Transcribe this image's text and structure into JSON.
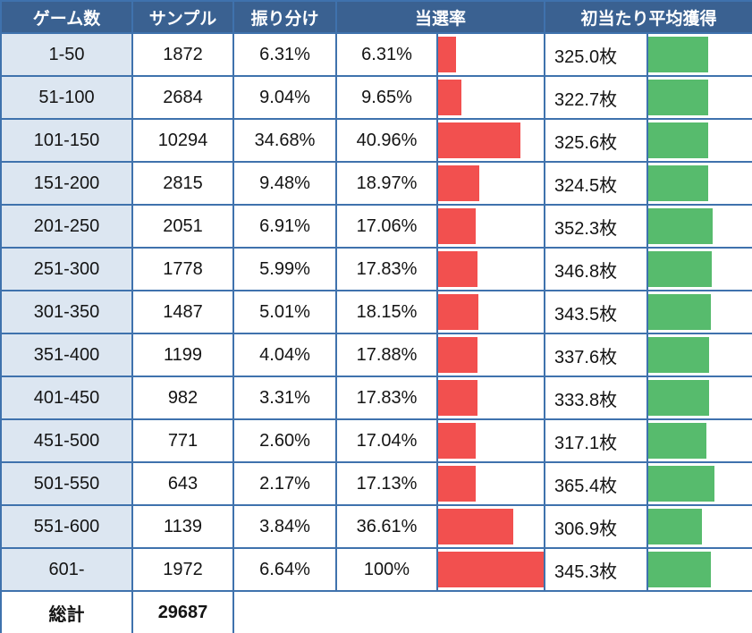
{
  "colors": {
    "header_bg": "#3a6191",
    "label_bg": "#dce6f1",
    "border": "#3f72ad",
    "win_bar": "#f2504f",
    "payout_bar": "#57bb6d"
  },
  "chart_data": {
    "type": "table",
    "headers": {
      "games": "ゲーム数",
      "sample": "サンプル",
      "distribution": "振り分け",
      "win_rate": "当選率",
      "avg_payout": "初当たり平均獲得"
    },
    "rows": [
      {
        "games": "1-50",
        "sample": "1872",
        "distribution": "6.31%",
        "win_rate": "6.31%",
        "win_rate_bar_pct": 17,
        "payout": "325.0枚",
        "payout_bar_pct": 58
      },
      {
        "games": "51-100",
        "sample": "2684",
        "distribution": "9.04%",
        "win_rate": "9.65%",
        "win_rate_bar_pct": 22,
        "payout": "322.7枚",
        "payout_bar_pct": 58
      },
      {
        "games": "101-150",
        "sample": "10294",
        "distribution": "34.68%",
        "win_rate": "40.96%",
        "win_rate_bar_pct": 78,
        "payout": "325.6枚",
        "payout_bar_pct": 58
      },
      {
        "games": "151-200",
        "sample": "2815",
        "distribution": "9.48%",
        "win_rate": "18.97%",
        "win_rate_bar_pct": 39,
        "payout": "324.5枚",
        "payout_bar_pct": 58
      },
      {
        "games": "201-250",
        "sample": "2051",
        "distribution": "6.91%",
        "win_rate": "17.06%",
        "win_rate_bar_pct": 36,
        "payout": "352.3枚",
        "payout_bar_pct": 62
      },
      {
        "games": "251-300",
        "sample": "1778",
        "distribution": "5.99%",
        "win_rate": "17.83%",
        "win_rate_bar_pct": 37,
        "payout": "346.8枚",
        "payout_bar_pct": 61
      },
      {
        "games": "301-350",
        "sample": "1487",
        "distribution": "5.01%",
        "win_rate": "18.15%",
        "win_rate_bar_pct": 38,
        "payout": "343.5枚",
        "payout_bar_pct": 60
      },
      {
        "games": "351-400",
        "sample": "1199",
        "distribution": "4.04%",
        "win_rate": "17.88%",
        "win_rate_bar_pct": 37,
        "payout": "337.6枚",
        "payout_bar_pct": 59
      },
      {
        "games": "401-450",
        "sample": "982",
        "distribution": "3.31%",
        "win_rate": "17.83%",
        "win_rate_bar_pct": 37,
        "payout": "333.8枚",
        "payout_bar_pct": 59
      },
      {
        "games": "451-500",
        "sample": "771",
        "distribution": "2.60%",
        "win_rate": "17.04%",
        "win_rate_bar_pct": 36,
        "payout": "317.1枚",
        "payout_bar_pct": 56
      },
      {
        "games": "501-550",
        "sample": "643",
        "distribution": "2.17%",
        "win_rate": "17.13%",
        "win_rate_bar_pct": 36,
        "payout": "365.4枚",
        "payout_bar_pct": 64
      },
      {
        "games": "551-600",
        "sample": "1139",
        "distribution": "3.84%",
        "win_rate": "36.61%",
        "win_rate_bar_pct": 71,
        "payout": "306.9枚",
        "payout_bar_pct": 52
      },
      {
        "games": "601-",
        "sample": "1972",
        "distribution": "6.64%",
        "win_rate": "100%",
        "win_rate_bar_pct": 100,
        "payout": "345.3枚",
        "payout_bar_pct": 60
      }
    ],
    "total": {
      "label": "総計",
      "sample": "29687"
    }
  }
}
